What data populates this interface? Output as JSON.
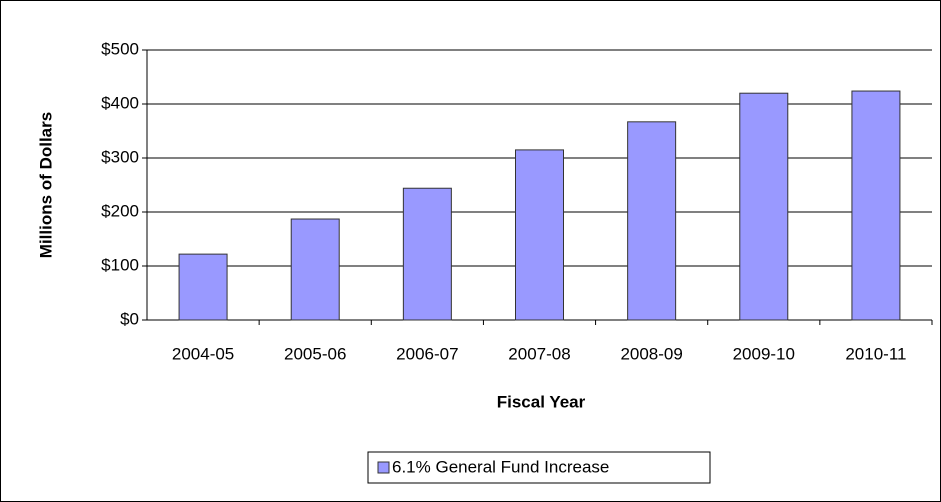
{
  "chart_data": {
    "type": "bar",
    "x_label": "Fiscal Year",
    "y_label": "Millions of Dollars",
    "categories": [
      "2004-05",
      "2005-06",
      "2006-07",
      "2007-08",
      "2008-09",
      "2009-10",
      "2010-11"
    ],
    "series": [
      {
        "name": "6.1% General Fund Increase",
        "color": "#9999ff",
        "values": [
          122,
          187,
          244,
          315,
          367,
          420,
          424
        ]
      }
    ],
    "ylim": [
      0,
      500
    ],
    "yticks": [
      {
        "value": 0,
        "label": "$0"
      },
      {
        "value": 100,
        "label": "$100"
      },
      {
        "value": 200,
        "label": "$200"
      },
      {
        "value": 300,
        "label": "$300"
      },
      {
        "value": 400,
        "label": "$400"
      },
      {
        "value": 500,
        "label": "$500"
      }
    ],
    "grid": true,
    "legend": "bottom"
  }
}
